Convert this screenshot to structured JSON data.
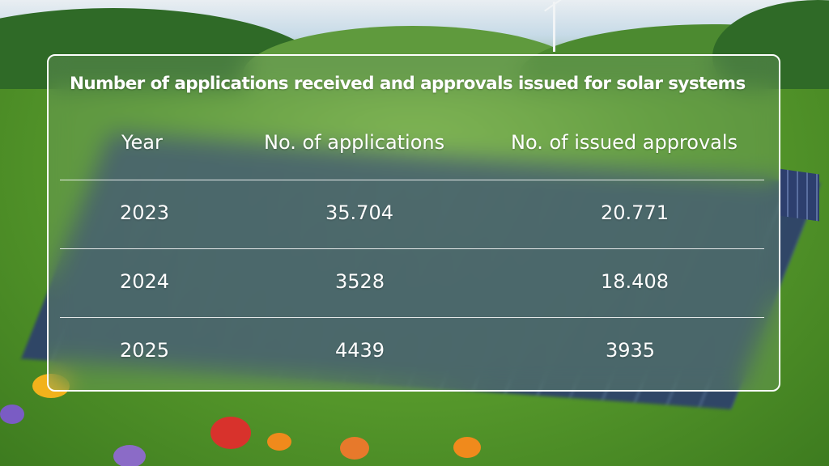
{
  "table": {
    "title": "Number of applications received and approvals issued for solar systems",
    "headers": [
      "Year",
      "No. of applications",
      "No. of issued approvals"
    ],
    "rows": [
      [
        "2023",
        "35.704",
        "20.771"
      ],
      [
        "2024",
        "3528",
        "18.408"
      ],
      [
        "2025",
        "4439",
        "3935"
      ]
    ]
  }
}
